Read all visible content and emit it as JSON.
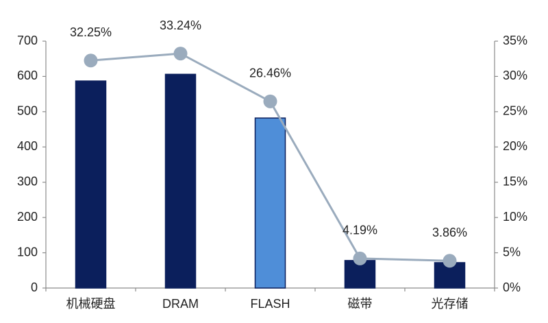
{
  "chart_data": {
    "type": "bar",
    "categories": [
      "机械硬盘",
      "DRAM",
      "FLASH",
      "磁带",
      "光存储"
    ],
    "series": [
      {
        "type": "bar",
        "colors": [
          "#0b1f5c",
          "#0b1f5c",
          "#4f8ed8",
          "#0b1f5c",
          "#0b1f5c"
        ],
        "values": [
          587,
          606,
          482,
          78,
          72
        ]
      },
      {
        "type": "line",
        "axis": "y2",
        "color": "#9aabbd",
        "values": [
          32.25,
          33.24,
          26.46,
          4.19,
          3.86
        ],
        "value_labels": [
          "32.25%",
          "33.24%",
          "26.46%",
          "4.19%",
          "3.86%"
        ]
      }
    ],
    "ylim": [
      0,
      700
    ],
    "yticks": [
      0,
      100,
      200,
      300,
      400,
      500,
      600,
      700
    ],
    "y2lim": [
      0,
      35
    ],
    "y2ticks": [
      {
        "value": 0,
        "label": "0%"
      },
      {
        "value": 5,
        "label": "5%"
      },
      {
        "value": 10,
        "label": "10%"
      },
      {
        "value": 15,
        "label": "15%"
      },
      {
        "value": 20,
        "label": "20%"
      },
      {
        "value": 25,
        "label": "25%"
      },
      {
        "value": 30,
        "label": "30%"
      },
      {
        "value": 35,
        "label": "35%"
      }
    ]
  }
}
